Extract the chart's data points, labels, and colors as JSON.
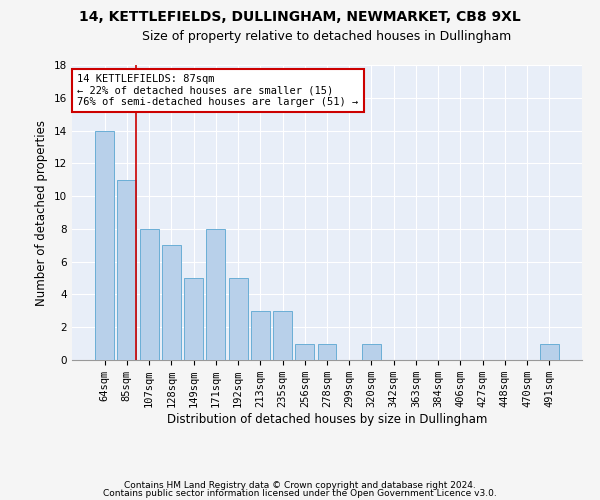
{
  "title": "14, KETTLEFIELDS, DULLINGHAM, NEWMARKET, CB8 9XL",
  "subtitle": "Size of property relative to detached houses in Dullingham",
  "xlabel": "Distribution of detached houses by size in Dullingham",
  "ylabel": "Number of detached properties",
  "categories": [
    "64sqm",
    "85sqm",
    "107sqm",
    "128sqm",
    "149sqm",
    "171sqm",
    "192sqm",
    "213sqm",
    "235sqm",
    "256sqm",
    "278sqm",
    "299sqm",
    "320sqm",
    "342sqm",
    "363sqm",
    "384sqm",
    "406sqm",
    "427sqm",
    "448sqm",
    "470sqm",
    "491sqm"
  ],
  "values": [
    14,
    11,
    8,
    7,
    5,
    8,
    5,
    3,
    3,
    1,
    1,
    0,
    1,
    0,
    0,
    0,
    0,
    0,
    0,
    0,
    1
  ],
  "bar_color": "#b8d0ea",
  "bar_edgecolor": "#6aaed6",
  "marker_color": "#cc0000",
  "annotation_text": "14 KETTLEFIELDS: 87sqm\n← 22% of detached houses are smaller (15)\n76% of semi-detached houses are larger (51) →",
  "annotation_box_color": "#ffffff",
  "annotation_box_edgecolor": "#cc0000",
  "ylim": [
    0,
    18
  ],
  "yticks": [
    0,
    2,
    4,
    6,
    8,
    10,
    12,
    14,
    16,
    18
  ],
  "footer1": "Contains HM Land Registry data © Crown copyright and database right 2024.",
  "footer2": "Contains public sector information licensed under the Open Government Licence v3.0.",
  "bg_color": "#e8eef8",
  "grid_color": "#ffffff",
  "fig_bg_color": "#f5f5f5",
  "title_fontsize": 10,
  "subtitle_fontsize": 9,
  "tick_fontsize": 7.5,
  "ylabel_fontsize": 8.5,
  "xlabel_fontsize": 8.5,
  "footer_fontsize": 6.5
}
